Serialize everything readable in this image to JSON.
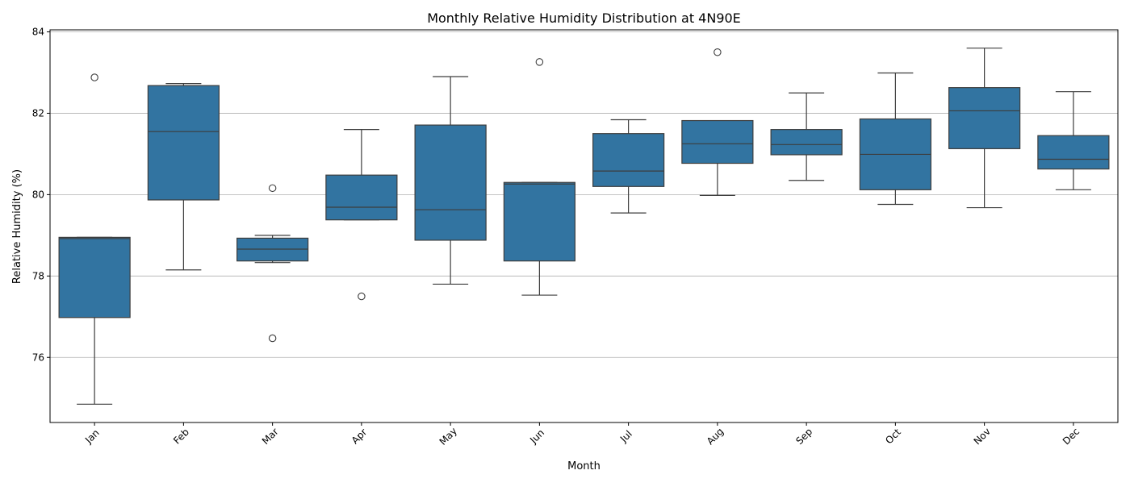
{
  "chart_data": {
    "type": "box",
    "title": "Monthly Relative Humidity Distribution at 4N90E",
    "xlabel": "Month",
    "ylabel": "Relative Humidity (%)",
    "ylim": [
      74.4,
      84.05
    ],
    "yticks": [
      76,
      78,
      80,
      82,
      84
    ],
    "grid": "y",
    "colors": {
      "box": "#3274a1",
      "line": "#3d3d3d",
      "grid": "#b0b0b0",
      "axis": "#000000"
    },
    "categories": [
      "Jan",
      "Feb",
      "Mar",
      "Apr",
      "May",
      "Jun",
      "Jul",
      "Aug",
      "Sep",
      "Oct",
      "Nov",
      "Dec"
    ],
    "boxes": [
      {
        "month": "Jan",
        "whisker_low": 74.85,
        "q1": 76.98,
        "median": 78.92,
        "q3": 78.95,
        "whisker_high": 78.95,
        "outliers": [
          82.88
        ]
      },
      {
        "month": "Feb",
        "whisker_low": 78.15,
        "q1": 79.87,
        "median": 81.55,
        "q3": 82.68,
        "whisker_high": 82.73,
        "outliers": []
      },
      {
        "month": "Mar",
        "whisker_low": 78.33,
        "q1": 78.37,
        "median": 78.66,
        "q3": 78.93,
        "whisker_high": 79.0,
        "outliers": [
          80.16,
          76.47
        ]
      },
      {
        "month": "Apr",
        "whisker_low": 79.38,
        "q1": 79.38,
        "median": 79.69,
        "q3": 80.48,
        "whisker_high": 81.6,
        "outliers": [
          77.5
        ]
      },
      {
        "month": "May",
        "whisker_low": 77.8,
        "q1": 78.88,
        "median": 79.63,
        "q3": 81.71,
        "whisker_high": 82.9,
        "outliers": []
      },
      {
        "month": "Jun",
        "whisker_low": 77.53,
        "q1": 78.37,
        "median": 80.26,
        "q3": 80.3,
        "whisker_high": 80.3,
        "outliers": [
          83.26
        ]
      },
      {
        "month": "Jul",
        "whisker_low": 79.55,
        "q1": 80.2,
        "median": 80.58,
        "q3": 81.5,
        "whisker_high": 81.84,
        "outliers": []
      },
      {
        "month": "Aug",
        "whisker_low": 79.98,
        "q1": 80.77,
        "median": 81.25,
        "q3": 81.82,
        "whisker_high": 81.82,
        "outliers": [
          83.5
        ]
      },
      {
        "month": "Sep",
        "whisker_low": 80.35,
        "q1": 80.98,
        "median": 81.23,
        "q3": 81.6,
        "whisker_high": 82.5,
        "outliers": []
      },
      {
        "month": "Oct",
        "whisker_low": 79.76,
        "q1": 80.12,
        "median": 80.99,
        "q3": 81.86,
        "whisker_high": 82.99,
        "outliers": []
      },
      {
        "month": "Nov",
        "whisker_low": 79.68,
        "q1": 81.13,
        "median": 82.06,
        "q3": 82.63,
        "whisker_high": 83.6,
        "outliers": []
      },
      {
        "month": "Dec",
        "whisker_low": 80.12,
        "q1": 80.63,
        "median": 80.87,
        "q3": 81.45,
        "whisker_high": 82.53,
        "outliers": []
      }
    ]
  }
}
